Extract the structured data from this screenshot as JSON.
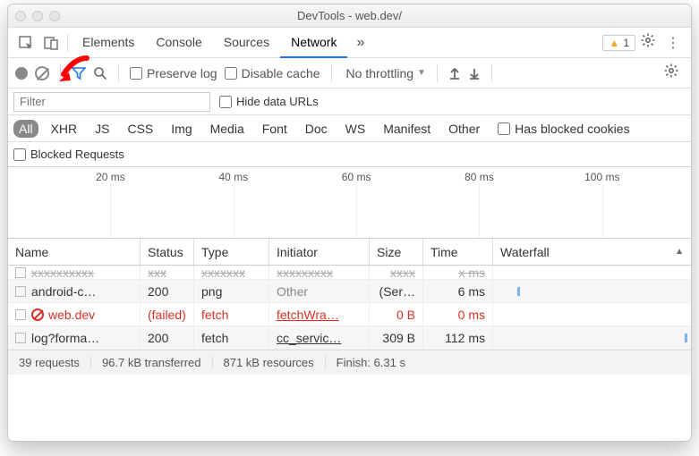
{
  "window": {
    "title": "DevTools - web.dev/"
  },
  "tabs": {
    "items": [
      "Elements",
      "Console",
      "Sources",
      "Network"
    ],
    "active_index": 3,
    "more_glyph": "»",
    "warning_count": "1"
  },
  "toolbar": {
    "preserve_log": "Preserve log",
    "disable_cache": "Disable cache",
    "throttling": "No throttling"
  },
  "filter": {
    "placeholder": "Filter",
    "hide_data_urls": "Hide data URLs"
  },
  "types": {
    "items": [
      "All",
      "XHR",
      "JS",
      "CSS",
      "Img",
      "Media",
      "Font",
      "Doc",
      "WS",
      "Manifest",
      "Other"
    ],
    "active_index": 0,
    "has_blocked_cookies": "Has blocked cookies"
  },
  "blocked_requests_label": "Blocked Requests",
  "timeline": {
    "ticks": [
      "20 ms",
      "40 ms",
      "60 ms",
      "80 ms",
      "100 ms"
    ],
    "tick_positions_pct": [
      15,
      33,
      51,
      69,
      87
    ]
  },
  "table": {
    "columns": [
      "Name",
      "Status",
      "Type",
      "Initiator",
      "Size",
      "Time",
      "Waterfall"
    ],
    "rows": [
      {
        "name": "android-c…",
        "status": "200",
        "type": "png",
        "initiator": "Other",
        "initiator_muted": true,
        "size": "(Ser…",
        "time": "6 ms",
        "wf_left_pct": 12,
        "failed": false,
        "strike": false
      },
      {
        "name": "web.dev",
        "status": "(failed)",
        "type": "fetch",
        "initiator": "fetchWra…",
        "initiator_link": true,
        "size": "0 B",
        "time": "0 ms",
        "failed": true,
        "blocked_icon": true
      },
      {
        "name": "log?forma…",
        "status": "200",
        "type": "fetch",
        "initiator": "cc_servic…",
        "initiator_link": true,
        "size": "309 B",
        "time": "112 ms",
        "wf_left_pct": 97,
        "failed": false
      }
    ],
    "ghost_row": {
      "name": "",
      "status": "",
      "type": "",
      "initiator": "",
      "size": "",
      "time": ""
    }
  },
  "status": {
    "requests": "39 requests",
    "transferred": "96.7 kB transferred",
    "resources": "871 kB resources",
    "finish": "Finish: 6.31 s"
  },
  "colors": {
    "accent": "#1a73e8",
    "error": "#d93025",
    "warn": "#f5a623"
  }
}
